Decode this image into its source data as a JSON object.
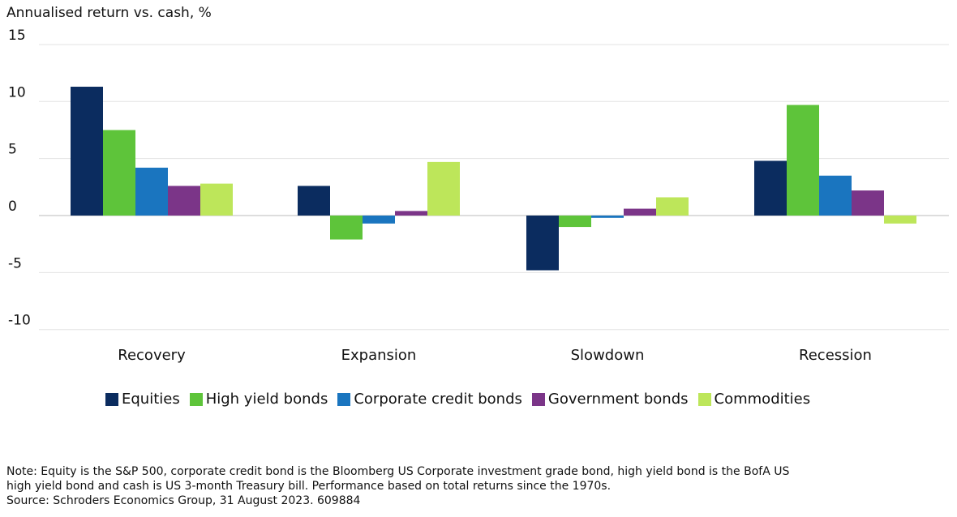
{
  "chart_data": {
    "type": "bar",
    "title": "Annualised return vs. cash, %",
    "xlabel": "",
    "ylabel": "",
    "ylim": [
      -10,
      15
    ],
    "yticks": [
      15,
      10,
      5,
      0,
      -5,
      -10
    ],
    "grid": true,
    "legend_position": "bottom",
    "categories": [
      "Recovery",
      "Expansion",
      "Slowdown",
      "Recession"
    ],
    "series": [
      {
        "name": "Equities",
        "color": "#0b2c5f",
        "values": [
          11.3,
          2.6,
          -4.8,
          4.8
        ]
      },
      {
        "name": "High yield bonds",
        "color": "#5ec43a",
        "values": [
          7.5,
          -2.1,
          -1.0,
          9.7
        ]
      },
      {
        "name": "Corporate credit bonds",
        "color": "#1a75bf",
        "values": [
          4.2,
          -0.7,
          -0.2,
          3.5
        ]
      },
      {
        "name": "Government bonds",
        "color": "#7b3588",
        "values": [
          2.6,
          0.4,
          0.6,
          2.2
        ]
      },
      {
        "name": "Commodities",
        "color": "#bde65a",
        "values": [
          2.8,
          4.7,
          1.6,
          -0.7
        ]
      }
    ]
  },
  "note": {
    "line1": "Note: Equity is the S&P 500, corporate credit bond is the Bloomberg US Corporate investment grade bond, high yield bond is the BofA US",
    "line2": "high yield bond and cash is US 3-month Treasury bill. Performance based on total returns since the 1970s.",
    "line3": "Source: Schroders Economics Group, 31 August 2023. 609884"
  }
}
